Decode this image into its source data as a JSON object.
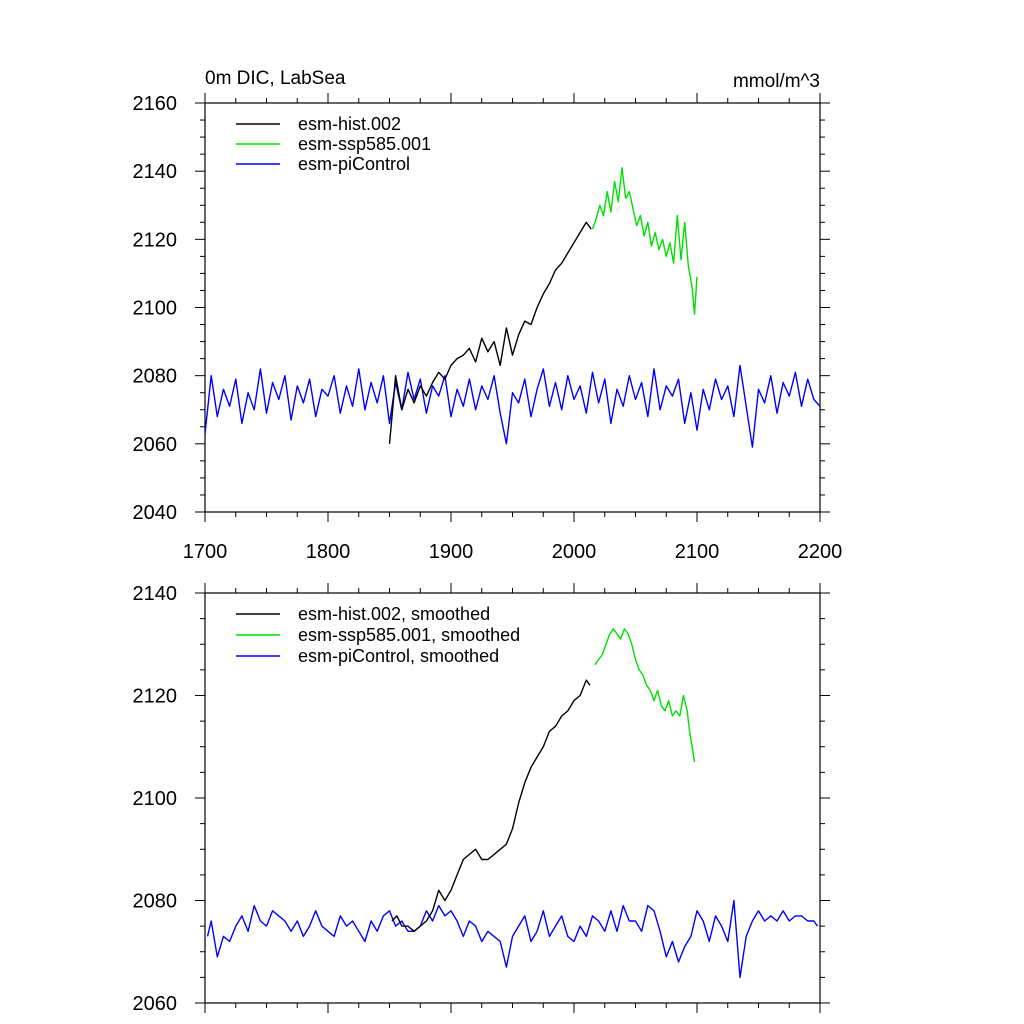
{
  "figure": {
    "title_left": "0m DIC, LabSea",
    "title_right": "mmol/m^3"
  },
  "chart_data": [
    {
      "type": "line",
      "title": "0m DIC, LabSea",
      "units": "mmol/m^3",
      "xlim": [
        1700,
        2200
      ],
      "ylim": [
        2040,
        2160
      ],
      "x_ticks": [
        1700,
        1800,
        1900,
        2000,
        2100,
        2200
      ],
      "y_ticks": [
        2040,
        2060,
        2080,
        2100,
        2120,
        2140,
        2160
      ],
      "legend_position": "top-left",
      "series": [
        {
          "name": "esm-hist.002",
          "color": "#000000",
          "x": [
            1850,
            1852,
            1855,
            1860,
            1865,
            1870,
            1875,
            1880,
            1885,
            1890,
            1895,
            1900,
            1905,
            1910,
            1915,
            1920,
            1925,
            1930,
            1935,
            1940,
            1945,
            1950,
            1955,
            1960,
            1965,
            1970,
            1975,
            1980,
            1985,
            1990,
            1995,
            2000,
            2005,
            2010,
            2014
          ],
          "y": [
            2060,
            2068,
            2080,
            2070,
            2076,
            2072,
            2077,
            2074,
            2078,
            2081,
            2079,
            2083,
            2085,
            2086,
            2088,
            2084,
            2091,
            2087,
            2090,
            2083,
            2094,
            2086,
            2092,
            2096,
            2095,
            2100,
            2104,
            2107,
            2111,
            2113,
            2116,
            2119,
            2122,
            2125,
            2123
          ]
        },
        {
          "name": "esm-ssp585.001",
          "color": "#00e000",
          "x": [
            2015,
            2018,
            2021,
            2024,
            2027,
            2030,
            2033,
            2036,
            2039,
            2042,
            2045,
            2048,
            2051,
            2054,
            2057,
            2060,
            2063,
            2066,
            2069,
            2072,
            2075,
            2078,
            2081,
            2084,
            2087,
            2090,
            2093,
            2096,
            2098,
            2100
          ],
          "y": [
            2123,
            2126,
            2130,
            2127,
            2134,
            2128,
            2137,
            2131,
            2141,
            2132,
            2134,
            2129,
            2124,
            2127,
            2121,
            2125,
            2118,
            2122,
            2117,
            2120,
            2115,
            2119,
            2113,
            2127,
            2114,
            2125,
            2112,
            2106,
            2098,
            2109
          ]
        },
        {
          "name": "esm-piControl",
          "color": "#0000ff",
          "x": [
            1700,
            1705,
            1710,
            1715,
            1720,
            1725,
            1730,
            1735,
            1740,
            1745,
            1750,
            1755,
            1760,
            1765,
            1770,
            1775,
            1780,
            1785,
            1790,
            1795,
            1800,
            1805,
            1810,
            1815,
            1820,
            1825,
            1830,
            1835,
            1840,
            1845,
            1850,
            1855,
            1860,
            1865,
            1870,
            1875,
            1880,
            1885,
            1890,
            1895,
            1900,
            1905,
            1910,
            1915,
            1920,
            1925,
            1930,
            1935,
            1940,
            1945,
            1950,
            1955,
            1960,
            1965,
            1970,
            1975,
            1980,
            1985,
            1990,
            1995,
            2000,
            2005,
            2010,
            2015,
            2020,
            2025,
            2030,
            2035,
            2040,
            2045,
            2050,
            2055,
            2060,
            2065,
            2070,
            2075,
            2080,
            2085,
            2090,
            2095,
            2100,
            2105,
            2110,
            2115,
            2120,
            2125,
            2130,
            2135,
            2140,
            2145,
            2150,
            2155,
            2160,
            2165,
            2170,
            2175,
            2180,
            2185,
            2190,
            2195,
            2200
          ],
          "y": [
            2063,
            2080,
            2068,
            2076,
            2071,
            2079,
            2066,
            2075,
            2070,
            2082,
            2069,
            2078,
            2073,
            2080,
            2067,
            2077,
            2072,
            2079,
            2068,
            2076,
            2074,
            2080,
            2069,
            2077,
            2071,
            2082,
            2070,
            2078,
            2072,
            2080,
            2066,
            2078,
            2070,
            2081,
            2073,
            2079,
            2069,
            2077,
            2074,
            2080,
            2068,
            2076,
            2071,
            2079,
            2070,
            2077,
            2073,
            2080,
            2069,
            2060,
            2075,
            2072,
            2079,
            2068,
            2076,
            2082,
            2071,
            2078,
            2070,
            2080,
            2073,
            2077,
            2069,
            2081,
            2072,
            2079,
            2066,
            2076,
            2071,
            2080,
            2073,
            2078,
            2068,
            2082,
            2070,
            2077,
            2074,
            2079,
            2066,
            2075,
            2064,
            2076,
            2070,
            2079,
            2073,
            2077,
            2068,
            2083,
            2071,
            2059,
            2076,
            2072,
            2080,
            2069,
            2078,
            2074,
            2081,
            2071,
            2079,
            2073,
            2071
          ]
        }
      ]
    },
    {
      "type": "line",
      "xlim": [
        1700,
        2200
      ],
      "ylim": [
        2060,
        2140
      ],
      "x_ticks": [
        1700,
        1800,
        1900,
        2000,
        2100,
        2200
      ],
      "y_ticks": [
        2060,
        2080,
        2100,
        2120,
        2140
      ],
      "legend_position": "top-left",
      "series": [
        {
          "name": "esm-hist.002, smoothed",
          "color": "#000000",
          "x": [
            1852,
            1856,
            1860,
            1865,
            1870,
            1875,
            1880,
            1885,
            1890,
            1895,
            1900,
            1905,
            1910,
            1915,
            1920,
            1925,
            1930,
            1935,
            1940,
            1945,
            1950,
            1955,
            1960,
            1965,
            1970,
            1975,
            1980,
            1985,
            1990,
            1995,
            2000,
            2005,
            2010,
            2013
          ],
          "y": [
            2076,
            2077,
            2075,
            2075,
            2074,
            2075,
            2076,
            2078,
            2082,
            2080,
            2082,
            2085,
            2088,
            2089,
            2090,
            2088,
            2088,
            2089,
            2090,
            2091,
            2094,
            2099,
            2103,
            2106,
            2108,
            2110,
            2113,
            2114,
            2116,
            2117,
            2119,
            2120,
            2123,
            2122
          ]
        },
        {
          "name": "esm-ssp585.001, smoothed",
          "color": "#00e000",
          "x": [
            2017,
            2020,
            2023,
            2026,
            2029,
            2032,
            2035,
            2038,
            2041,
            2044,
            2047,
            2050,
            2053,
            2056,
            2059,
            2062,
            2065,
            2068,
            2071,
            2074,
            2077,
            2080,
            2083,
            2086,
            2089,
            2092,
            2094,
            2096,
            2098
          ],
          "y": [
            2126,
            2127,
            2128,
            2130,
            2132,
            2133,
            2132,
            2131,
            2133,
            2132,
            2130,
            2127,
            2125,
            2124,
            2122,
            2121,
            2119,
            2121,
            2118,
            2117,
            2119,
            2116,
            2117,
            2116,
            2120,
            2117,
            2113,
            2110,
            2107
          ]
        },
        {
          "name": "esm-piControl, smoothed",
          "color": "#0000ff",
          "x": [
            1702,
            1705,
            1710,
            1715,
            1720,
            1725,
            1730,
            1735,
            1740,
            1745,
            1750,
            1755,
            1760,
            1765,
            1770,
            1775,
            1780,
            1785,
            1790,
            1795,
            1800,
            1805,
            1810,
            1815,
            1820,
            1825,
            1830,
            1835,
            1840,
            1845,
            1850,
            1855,
            1860,
            1865,
            1870,
            1875,
            1880,
            1885,
            1890,
            1895,
            1900,
            1905,
            1910,
            1915,
            1920,
            1925,
            1930,
            1935,
            1940,
            1945,
            1950,
            1955,
            1960,
            1965,
            1970,
            1975,
            1980,
            1985,
            1990,
            1995,
            2000,
            2005,
            2010,
            2015,
            2020,
            2025,
            2030,
            2035,
            2040,
            2045,
            2050,
            2055,
            2060,
            2065,
            2070,
            2075,
            2080,
            2085,
            2090,
            2095,
            2100,
            2105,
            2110,
            2115,
            2120,
            2125,
            2130,
            2135,
            2140,
            2145,
            2150,
            2155,
            2160,
            2165,
            2170,
            2175,
            2180,
            2185,
            2190,
            2195,
            2198
          ],
          "y": [
            2073,
            2076,
            2069,
            2073,
            2072,
            2075,
            2077,
            2074,
            2079,
            2076,
            2075,
            2078,
            2077,
            2076,
            2074,
            2076,
            2073,
            2075,
            2078,
            2075,
            2074,
            2073,
            2077,
            2075,
            2076,
            2074,
            2072,
            2076,
            2074,
            2077,
            2078,
            2075,
            2076,
            2074,
            2074,
            2075,
            2078,
            2076,
            2079,
            2077,
            2078,
            2076,
            2073,
            2076,
            2075,
            2072,
            2074,
            2073,
            2072,
            2067,
            2073,
            2075,
            2077,
            2072,
            2074,
            2078,
            2073,
            2075,
            2077,
            2073,
            2072,
            2075,
            2073,
            2077,
            2076,
            2074,
            2078,
            2074,
            2079,
            2076,
            2076,
            2074,
            2079,
            2078,
            2074,
            2069,
            2072,
            2068,
            2071,
            2073,
            2078,
            2076,
            2072,
            2077,
            2075,
            2072,
            2080,
            2065,
            2073,
            2076,
            2078,
            2076,
            2077,
            2076,
            2078,
            2076,
            2077,
            2077,
            2076,
            2076,
            2075
          ]
        }
      ]
    }
  ]
}
